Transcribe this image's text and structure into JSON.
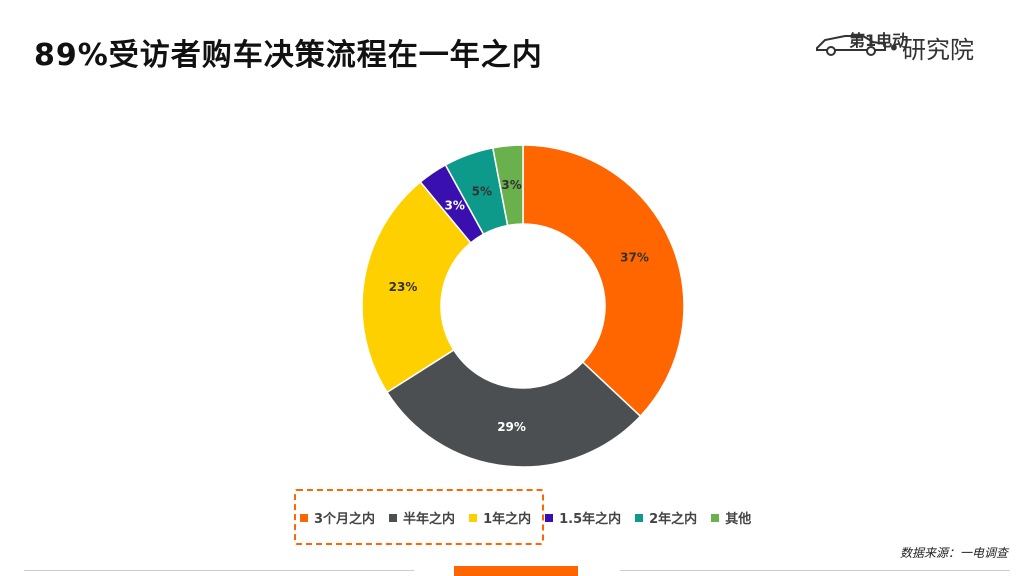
{
  "page": {
    "title": "89%受访者购车决策流程在一年之内",
    "source": "数据来源：一电调查",
    "logo": {
      "brand": "第1电动",
      "suffix": "研究院",
      "separator": "•"
    }
  },
  "chart_data": {
    "type": "pie",
    "donut": true,
    "categories": [
      "3个月之内",
      "半年之内",
      "1年之内",
      "1.5年之内",
      "2年之内",
      "其他"
    ],
    "values": [
      37,
      29,
      23,
      3,
      5,
      3
    ],
    "labels": [
      "37%",
      "29%",
      "23%",
      "3%",
      "5%",
      "3%"
    ],
    "colors": [
      "#ff6600",
      "#4b4f51",
      "#ffd000",
      "#3a0fb0",
      "#0e9a8a",
      "#6ab04c"
    ],
    "label_colors": [
      "#333333",
      "#ffffff",
      "#333333",
      "#ffffff",
      "#333333",
      "#333333"
    ],
    "legend_position": "bottom",
    "highlighted_categories": [
      "3个月之内",
      "半年之内",
      "1年之内"
    ]
  }
}
